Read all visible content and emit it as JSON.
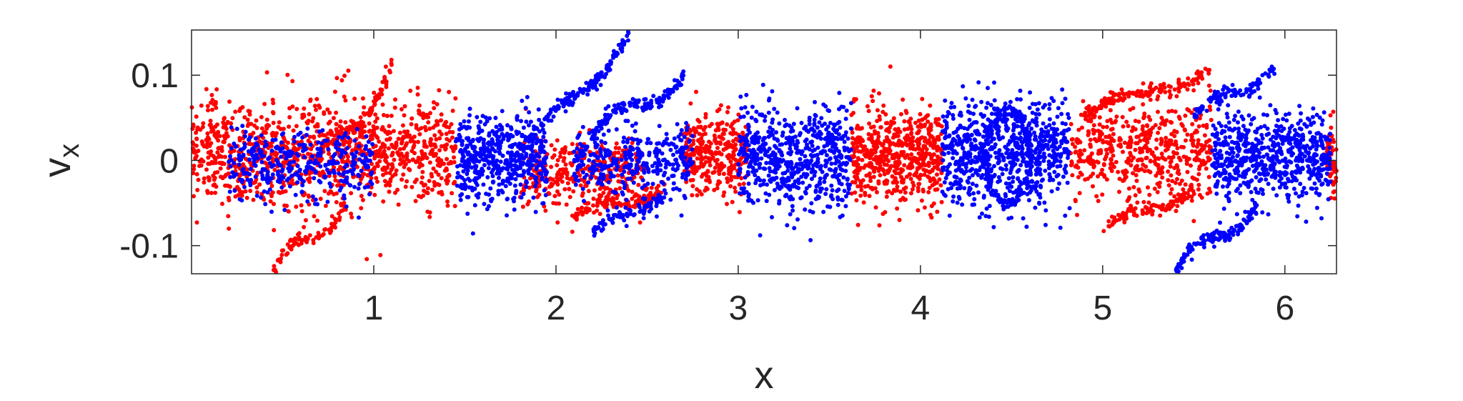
{
  "chart_data": {
    "type": "scatter",
    "title": "",
    "xlabel": "x",
    "ylabel": {
      "main": "v",
      "sub": "x"
    },
    "xlim": [
      0,
      6.2832
    ],
    "ylim": [
      -0.133,
      0.153
    ],
    "xticks": [
      1,
      2,
      3,
      4,
      5,
      6
    ],
    "xtick_labels": [
      "1",
      "2",
      "3",
      "4",
      "5",
      "6"
    ],
    "yticks": [
      -0.1,
      0,
      0.1
    ],
    "ytick_labels": [
      "-0.1",
      "0",
      "0.1"
    ],
    "grid": false,
    "legend": "none",
    "series": [
      {
        "color": "#ff0000",
        "marker": "dot",
        "segments": [
          {
            "kind": "cloud",
            "x": [
              0,
              1.45
            ],
            "y_center": 0.01,
            "y_spread": 0.03,
            "n": 1100
          },
          {
            "kind": "cloud",
            "x": [
              1.8,
              2.5
            ],
            "y_center": -0.015,
            "y_spread": 0.022,
            "n": 350
          },
          {
            "kind": "cloud",
            "x": [
              2.7,
              3.05
            ],
            "y_center": 0.01,
            "y_spread": 0.022,
            "n": 300
          },
          {
            "kind": "cloud",
            "x": [
              3.62,
              4.12
            ],
            "y_center": 0.005,
            "y_spread": 0.028,
            "n": 550
          },
          {
            "kind": "cloud",
            "x": [
              4.82,
              5.6
            ],
            "y_center": 0.01,
            "y_spread": 0.028,
            "n": 500
          },
          {
            "kind": "cloud",
            "x": [
              6.23,
              6.2832
            ],
            "y_center": 0.0,
            "y_spread": 0.025,
            "n": 60
          },
          {
            "kind": "curve",
            "x": [
              0.6,
              1.1
            ],
            "y": [
              -0.045,
              0.115
            ],
            "amp": 0.06,
            "n": 120
          },
          {
            "kind": "curve",
            "x": [
              0.45,
              0.85
            ],
            "y": [
              -0.13,
              -0.05
            ],
            "amp": 0.04,
            "n": 80
          },
          {
            "kind": "curve",
            "x": [
              2.1,
              2.6
            ],
            "y": [
              -0.07,
              -0.03
            ],
            "amp": 0.03,
            "n": 120
          },
          {
            "kind": "curve",
            "x": [
              4.9,
              5.6
            ],
            "y": [
              0.05,
              0.11
            ],
            "amp": 0.03,
            "n": 150
          },
          {
            "kind": "curve",
            "x": [
              5.0,
              5.5
            ],
            "y": [
              -0.085,
              -0.03
            ],
            "amp": 0.03,
            "n": 100
          }
        ]
      },
      {
        "color": "#0000ff",
        "marker": "dot",
        "segments": [
          {
            "kind": "cloud",
            "x": [
              0.2,
              1.0
            ],
            "y_center": -0.005,
            "y_spread": 0.02,
            "n": 350
          },
          {
            "kind": "cloud",
            "x": [
              1.45,
              1.95
            ],
            "y_center": 0.0,
            "y_spread": 0.025,
            "n": 500
          },
          {
            "kind": "cloud",
            "x": [
              2.1,
              2.75
            ],
            "y_center": 0.0,
            "y_spread": 0.02,
            "n": 350
          },
          {
            "kind": "cloud",
            "x": [
              3.0,
              3.62
            ],
            "y_center": 0.0,
            "y_spread": 0.03,
            "n": 600
          },
          {
            "kind": "cloud",
            "x": [
              4.12,
              4.82
            ],
            "y_center": 0.01,
            "y_spread": 0.03,
            "n": 700
          },
          {
            "kind": "cloud",
            "x": [
              5.6,
              6.25
            ],
            "y_center": 0.005,
            "y_spread": 0.025,
            "n": 650
          },
          {
            "kind": "curve",
            "x": [
              1.8,
              2.4
            ],
            "y": [
              0.0,
              0.15
            ],
            "amp": 0.04,
            "n": 150
          },
          {
            "kind": "curve",
            "x": [
              2.2,
              2.7
            ],
            "y": [
              0.03,
              0.1
            ],
            "amp": 0.04,
            "n": 130
          },
          {
            "kind": "curve",
            "x": [
              2.2,
              2.6
            ],
            "y": [
              -0.085,
              -0.04
            ],
            "amp": 0.02,
            "n": 80
          },
          {
            "kind": "ring",
            "cx": 4.48,
            "cy": 0.005,
            "rx": 0.12,
            "ry": 0.055,
            "n": 220
          },
          {
            "kind": "curve",
            "x": [
              5.4,
              5.85
            ],
            "y": [
              -0.13,
              -0.05
            ],
            "amp": 0.04,
            "n": 120
          },
          {
            "kind": "curve",
            "x": [
              5.5,
              5.95
            ],
            "y": [
              0.05,
              0.11
            ],
            "amp": 0.03,
            "n": 100
          }
        ]
      }
    ]
  }
}
